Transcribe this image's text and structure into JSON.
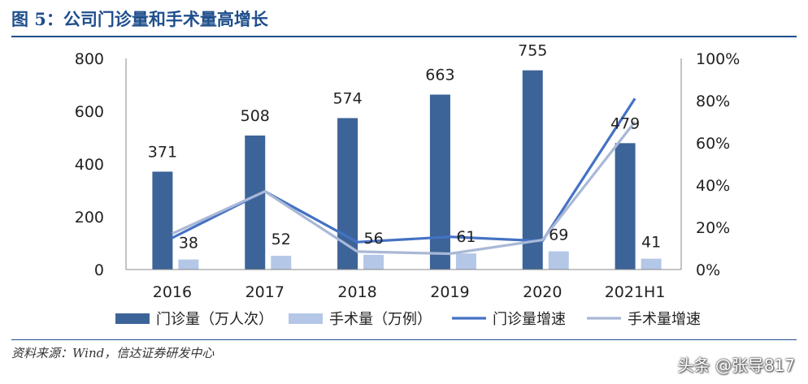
{
  "header": {
    "title": "图 5：公司门诊量和手术量高增长"
  },
  "footer": {
    "source": "资料来源：Wind，信达证券研发中心",
    "watermark": "头条 @张导817"
  },
  "chart_data": {
    "type": "bar",
    "categories": [
      "2016",
      "2017",
      "2018",
      "2019",
      "2020",
      "2021H1"
    ],
    "y_left": {
      "ylim": [
        0,
        800
      ],
      "ticks": [
        "0",
        "200",
        "400",
        "600",
        "800"
      ]
    },
    "y_right": {
      "ylim": [
        0,
        100
      ],
      "ticks": [
        "0%",
        "20%",
        "40%",
        "60%",
        "80%",
        "100%"
      ]
    },
    "series": [
      {
        "name": "门诊量（万人次）",
        "kind": "bar",
        "axis": "left",
        "color": "#3d6498",
        "values": [
          371,
          508,
          574,
          663,
          755,
          479
        ],
        "labels": [
          "371",
          "508",
          "574",
          "663",
          "755",
          "479"
        ]
      },
      {
        "name": "手术量（万例）",
        "kind": "bar",
        "axis": "left",
        "color": "#b4c7e7",
        "values": [
          38,
          52,
          56,
          61,
          69,
          41
        ],
        "labels": [
          "38",
          "52",
          "56",
          "61",
          "69",
          "41"
        ]
      },
      {
        "name": "门诊量增速",
        "kind": "line",
        "axis": "right",
        "color": "#4472c4",
        "values": [
          15,
          37,
          13,
          15.5,
          13.5,
          81
        ]
      },
      {
        "name": "手术量增速",
        "kind": "line",
        "axis": "right",
        "color": "#a9b8d6",
        "values": [
          17,
          37,
          8.5,
          7.5,
          14,
          70
        ]
      }
    ],
    "grid": false,
    "legend_position": "bottom"
  }
}
